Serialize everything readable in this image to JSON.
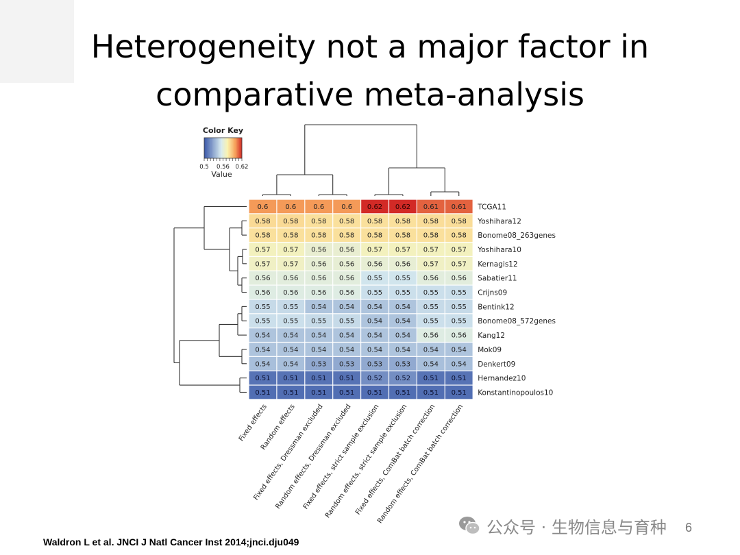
{
  "slide": {
    "title_line1": "Heterogeneity not a major factor in",
    "title_line2": "comparative meta-analysis",
    "citation": "Waldron L et al. JNCI J Natl Cancer Inst 2014;jnci.dju049",
    "watermark": "公众号 · 生物信息与育种",
    "page_number": "6"
  },
  "colors": {
    "low": "#3a58a8",
    "mid_low": "#d7eaf0",
    "mid": "#fbf3b0",
    "mid_high": "#f7a35c",
    "high": "#d22a26"
  },
  "chart_data": {
    "type": "heatmap",
    "color_key": {
      "title": "Color Key",
      "label": "Value",
      "ticks": [
        "0.5",
        "0.56",
        "0.62"
      ],
      "range": [
        0.5,
        0.62
      ]
    },
    "columns": [
      "Fixed effects",
      "Random effects",
      "Fixed effects, Dressman excluded",
      "Random effects, Dressman excluded",
      "Fixed effects, strict sample exclusion",
      "Random effects, strict sample exclusion",
      "Fixed effects, ComBat batch correction",
      "Random effects, ComBat batch correction"
    ],
    "rows": [
      "TCGA11",
      "Yoshihara12",
      "Bonome08_263genes",
      "Yoshihara10",
      "Kernagis12",
      "Sabatier11",
      "Crijns09",
      "Bentink12",
      "Bonome08_572genes",
      "Kang12",
      "Mok09",
      "Denkert09",
      "Hernandez10",
      "Konstantinopoulos10"
    ],
    "labels": [
      [
        "0.6",
        "0.6",
        "0.6",
        "0.6",
        "0.62",
        "0.62",
        "0.61",
        "0.61"
      ],
      [
        "0.58",
        "0.58",
        "0.58",
        "0.58",
        "0.58",
        "0.58",
        "0.58",
        "0.58"
      ],
      [
        "0.58",
        "0.58",
        "0.58",
        "0.58",
        "0.58",
        "0.58",
        "0.58",
        "0.58"
      ],
      [
        "0.57",
        "0.57",
        "0.56",
        "0.56",
        "0.57",
        "0.57",
        "0.57",
        "0.57"
      ],
      [
        "0.57",
        "0.57",
        "0.56",
        "0.56",
        "0.56",
        "0.56",
        "0.57",
        "0.57"
      ],
      [
        "0.56",
        "0.56",
        "0.56",
        "0.56",
        "0.55",
        "0.55",
        "0.56",
        "0.56"
      ],
      [
        "0.56",
        "0.56",
        "0.56",
        "0.56",
        "0.55",
        "0.55",
        "0.55",
        "0.55"
      ],
      [
        "0.55",
        "0.55",
        "0.54",
        "0.54",
        "0.54",
        "0.54",
        "0.55",
        "0.55"
      ],
      [
        "0.55",
        "0.55",
        "0.55",
        "0.55",
        "0.54",
        "0.54",
        "0.55",
        "0.55"
      ],
      [
        "0.54",
        "0.54",
        "0.54",
        "0.54",
        "0.54",
        "0.54",
        "0.56",
        "0.56"
      ],
      [
        "0.54",
        "0.54",
        "0.54",
        "0.54",
        "0.54",
        "0.54",
        "0.54",
        "0.54"
      ],
      [
        "0.54",
        "0.54",
        "0.53",
        "0.53",
        "0.53",
        "0.53",
        "0.54",
        "0.54"
      ],
      [
        "0.51",
        "0.51",
        "0.51",
        "0.51",
        "0.52",
        "0.52",
        "0.51",
        "0.51"
      ],
      [
        "0.51",
        "0.51",
        "0.51",
        "0.51",
        "0.51",
        "0.51",
        "0.51",
        "0.51"
      ]
    ],
    "values": [
      [
        0.6,
        0.6,
        0.6,
        0.6,
        0.62,
        0.62,
        0.61,
        0.61
      ],
      [
        0.582,
        0.582,
        0.58,
        0.58,
        0.58,
        0.58,
        0.581,
        0.581
      ],
      [
        0.58,
        0.58,
        0.58,
        0.58,
        0.58,
        0.58,
        0.58,
        0.58
      ],
      [
        0.57,
        0.57,
        0.564,
        0.564,
        0.57,
        0.57,
        0.57,
        0.57
      ],
      [
        0.568,
        0.568,
        0.563,
        0.563,
        0.563,
        0.563,
        0.568,
        0.568
      ],
      [
        0.56,
        0.56,
        0.56,
        0.56,
        0.552,
        0.552,
        0.56,
        0.56
      ],
      [
        0.558,
        0.558,
        0.558,
        0.558,
        0.55,
        0.55,
        0.55,
        0.55
      ],
      [
        0.548,
        0.548,
        0.54,
        0.54,
        0.54,
        0.54,
        0.548,
        0.548
      ],
      [
        0.55,
        0.55,
        0.548,
        0.548,
        0.54,
        0.54,
        0.55,
        0.55
      ],
      [
        0.54,
        0.54,
        0.54,
        0.54,
        0.54,
        0.54,
        0.558,
        0.558
      ],
      [
        0.54,
        0.54,
        0.54,
        0.54,
        0.54,
        0.54,
        0.54,
        0.54
      ],
      [
        0.538,
        0.538,
        0.53,
        0.53,
        0.53,
        0.53,
        0.538,
        0.538
      ],
      [
        0.51,
        0.51,
        0.51,
        0.51,
        0.52,
        0.52,
        0.51,
        0.51
      ],
      [
        0.508,
        0.508,
        0.508,
        0.508,
        0.508,
        0.508,
        0.508,
        0.508
      ]
    ],
    "column_dendrogram": "((Fixed effects, Random effects), (Fixed effects Dressman excluded, Random effects Dressman excluded)), ((Fixed strict, Random strict), (Fixed ComBat, Random ComBat))",
    "row_dendrogram": "clustered"
  }
}
